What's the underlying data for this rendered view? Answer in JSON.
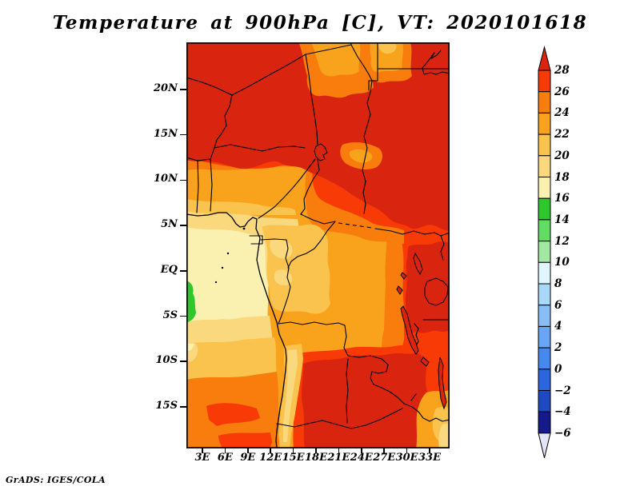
{
  "title": "Temperature at 900hPa [C], VT: 2020101618",
  "credit": "GrADS: IGES/COLA",
  "axes": {
    "lat_labels": [
      "20N",
      "15N",
      "10N",
      "5N",
      "EQ",
      "5S",
      "10S",
      "15S"
    ],
    "lon_labels": [
      "3E",
      "6E",
      "9E",
      "12E",
      "15E",
      "18E",
      "21E",
      "24E",
      "27E",
      "30E",
      "33E"
    ]
  },
  "colorbar": {
    "tick_labels": [
      "28",
      "26",
      "24",
      "22",
      "20",
      "18",
      "16",
      "14",
      "12",
      "10",
      "8",
      "6",
      "4",
      "2",
      "0",
      "−2",
      "−4",
      "−6"
    ],
    "above_max_color": "#d92410",
    "below_min_color": "#e4e4f8",
    "segment_colors_top_to_bottom": [
      "#f83a06",
      "#f87d0c",
      "#f9a21b",
      "#fac34e",
      "#fad87d",
      "#faf0b0",
      "#2ec82e",
      "#63dc63",
      "#a2e8a2",
      "#dff6ff",
      "#a8d7f7",
      "#88bef5",
      "#68a5f3",
      "#4688ee",
      "#2b66e0",
      "#1e49c0",
      "#141a8a"
    ]
  },
  "chart_data": {
    "type": "heatmap",
    "title": "Temperature at 900hPa [C], VT: 2020101618",
    "variable": "Temperature",
    "level": "900hPa",
    "units": "C",
    "valid_time": "2020101618",
    "x_tick_labels": [
      "3E",
      "6E",
      "9E",
      "12E",
      "15E",
      "18E",
      "21E",
      "24E",
      "27E",
      "30E",
      "33E"
    ],
    "y_tick_labels": [
      "20N",
      "15N",
      "10N",
      "5N",
      "EQ",
      "5S",
      "10S",
      "15S"
    ],
    "lon_domain_E": [
      1,
      35.5
    ],
    "lat_domain_N": [
      -19.7,
      25.2
    ],
    "contour_levels": [
      -6,
      -4,
      -2,
      0,
      2,
      4,
      6,
      8,
      10,
      12,
      14,
      16,
      18,
      20,
      22,
      24,
      26,
      28
    ],
    "legend_position": "right",
    "grid": false,
    "estimated_grid": {
      "lats": [
        "20N",
        "15N",
        "10N",
        "5N",
        "EQ",
        "5S",
        "10S",
        "15S"
      ],
      "lons": [
        "3E",
        "6E",
        "9E",
        "12E",
        "15E",
        "18E",
        "21E",
        "24E",
        "27E",
        "30E",
        "33E"
      ],
      "values_C": [
        [
          29,
          29,
          29,
          29,
          29,
          29,
          29,
          29,
          27,
          25,
          29
        ],
        [
          29,
          29,
          29,
          29,
          27,
          27,
          29,
          29,
          29,
          29,
          29
        ],
        [
          23,
          23,
          25,
          27,
          27,
          25,
          25,
          27,
          27,
          29,
          29
        ],
        [
          19,
          19,
          21,
          21,
          23,
          23,
          23,
          25,
          25,
          27,
          27
        ],
        [
          17,
          17,
          19,
          21,
          21,
          23,
          23,
          23,
          25,
          27,
          29
        ],
        [
          17,
          19,
          19,
          21,
          23,
          25,
          25,
          23,
          25,
          27,
          27
        ],
        [
          21,
          21,
          23,
          25,
          29,
          29,
          29,
          29,
          27,
          27,
          25
        ],
        [
          23,
          23,
          25,
          27,
          29,
          29,
          29,
          29,
          27,
          25,
          23
        ]
      ],
      "note": "Values estimated from fill shading; 29 denotes above top of scale (>28C). Hot (>28C) across the Sahara/north and Zambia-Angola interior; coolest (16-18C) along the Gulf of Guinea coast with a 14-16C green patch offshore near 3S."
    }
  }
}
